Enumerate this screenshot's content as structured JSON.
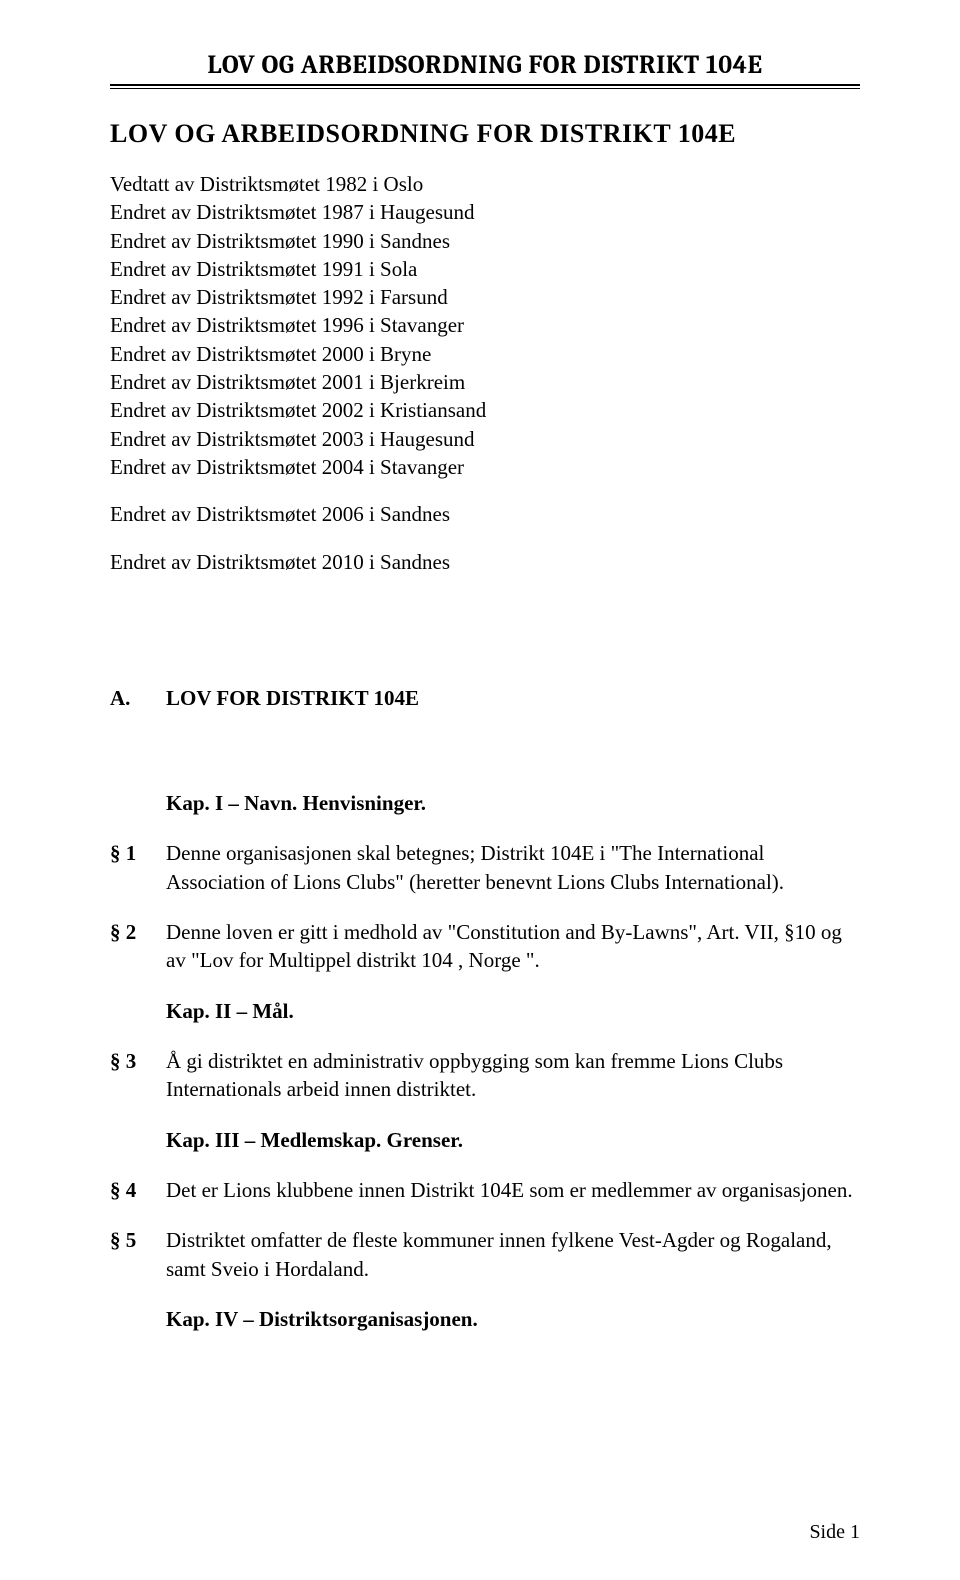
{
  "header_title": "LOV OG ARBEIDSORDNING FOR DISTRIKT 104E",
  "doc_title": "LOV OG ARBEIDSORDNING FOR DISTRIKT 104E",
  "amendments_block1": [
    "Vedtatt av Distriktsmøtet 1982 i Oslo",
    "Endret av Distriktsmøtet 1987 i Haugesund",
    "Endret av Distriktsmøtet 1990 i Sandnes",
    "Endret av Distriktsmøtet 1991 i Sola",
    "Endret av Distriktsmøtet 1992 i Farsund",
    "Endret av Distriktsmøtet 1996 i Stavanger",
    "Endret av Distriktsmøtet 2000 i Bryne",
    "Endret av Distriktsmøtet 2001 i Bjerkreim",
    "Endret av Distriktsmøtet 2002 i Kristiansand",
    "Endret av Distriktsmøtet 2003 i Haugesund",
    "Endret av Distriktsmøtet 2004 i Stavanger"
  ],
  "amendments_block2": "Endret av Distriktsmøtet 2006 i Sandnes",
  "amendments_block3": "Endret av Distriktsmøtet 2010 i Sandnes",
  "section_a_num": "A.",
  "section_a_title": "LOV FOR DISTRIKT 104E",
  "items": [
    {
      "type": "kap",
      "marker": "",
      "text": "Kap. I – Navn. Henvisninger."
    },
    {
      "type": "para",
      "marker": "§ 1",
      "text": "Denne organisasjonen skal betegnes; Distrikt 104E i \"The International Association of Lions Clubs\" (heretter benevnt Lions Clubs International)."
    },
    {
      "type": "para",
      "marker": "§ 2",
      "text": "Denne loven er gitt i medhold av \"Constitution and By-Lawns\", Art. VII, §10 og av \"Lov for Multippel distrikt 104 , Norge \"."
    },
    {
      "type": "kap",
      "marker": "",
      "text": "Kap. II – Mål."
    },
    {
      "type": "para",
      "marker": "§ 3",
      "text": "Å gi distriktet en administrativ oppbygging som kan fremme Lions Clubs Internationals arbeid innen distriktet."
    },
    {
      "type": "kap",
      "marker": "",
      "text": "Kap. III – Medlemskap. Grenser."
    },
    {
      "type": "para",
      "marker": "§ 4",
      "text": "Det er Lions klubbene innen Distrikt 104E som er medlemmer av organisasjonen."
    },
    {
      "type": "para",
      "marker": "§ 5",
      "text": "Distriktet omfatter de fleste kommuner innen fylkene Vest-Agder og Rogaland, samt Sveio i Hordaland."
    },
    {
      "type": "kap",
      "marker": "",
      "text": "Kap. IV – Distriktsorganisasjonen."
    }
  ],
  "footer": "Side 1"
}
